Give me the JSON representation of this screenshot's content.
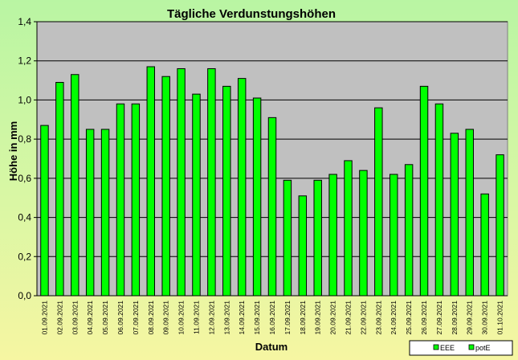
{
  "chart_data": {
    "type": "bar",
    "title": "Tägliche Verdunstungshöhen",
    "xlabel": "Datum",
    "ylabel": "Höhe in mm",
    "ylim": [
      0,
      1.4
    ],
    "ytick_step": 0.2,
    "ytick_labels": [
      "0,0",
      "0,2",
      "0,4",
      "0,6",
      "0,8",
      "1,0",
      "1,2",
      "1,4"
    ],
    "grid": true,
    "legend_position": "bottom-right",
    "categories": [
      "01.09.2021",
      "02.09.2021",
      "03.09.2021",
      "04.09.2021",
      "05.09.2021",
      "06.09.2021",
      "07.09.2021",
      "08.09.2021",
      "09.09.2021",
      "10.09.2021",
      "11.09.2021",
      "12.09.2021",
      "13.09.2021",
      "14.09.2021",
      "15.09.2021",
      "16.09.2021",
      "17.09.2021",
      "18.09.2021",
      "19.09.2021",
      "20.09.2021",
      "21.09.2021",
      "22.09.2021",
      "23.09.2021",
      "24.09.2021",
      "25.09.2021",
      "26.09.2021",
      "27.09.2021",
      "28.09.2021",
      "29.09.2021",
      "30.09.2021",
      "01.10.2021"
    ],
    "series": [
      {
        "name": "potE",
        "color": "#00ff00",
        "values": [
          0.87,
          1.09,
          1.13,
          0.85,
          0.85,
          0.98,
          0.98,
          1.17,
          1.12,
          1.16,
          1.03,
          1.16,
          1.07,
          1.11,
          1.01,
          0.91,
          0.59,
          0.51,
          0.59,
          0.62,
          0.69,
          0.64,
          0.96,
          0.62,
          0.67,
          1.07,
          0.98,
          0.83,
          0.85,
          0.52,
          0.72
        ]
      }
    ],
    "legend": [
      {
        "name": "EEE",
        "color": "#00ff00"
      },
      {
        "name": "potE",
        "color": "#00ff00"
      }
    ],
    "colors": {
      "plot_background": "#c0c0c0",
      "bar_fill": "#00ff00",
      "bar_stroke": "#000000",
      "gridline": "#000000"
    }
  }
}
